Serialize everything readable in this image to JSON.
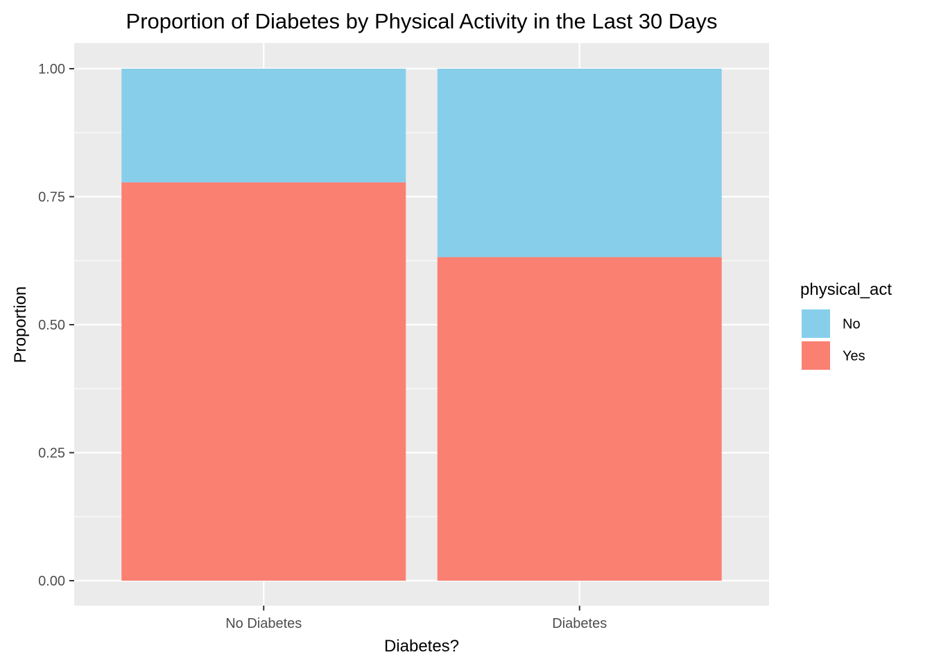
{
  "chart_data": {
    "type": "bar",
    "stacked": true,
    "title": "Proportion of Diabetes by Physical Activity in the Last 30 Days",
    "xlabel": "Diabetes?",
    "ylabel": "Proportion",
    "categories": [
      "No Diabetes",
      "Diabetes"
    ],
    "y_ticks": [
      "0.00",
      "0.25",
      "0.50",
      "0.75",
      "1.00"
    ],
    "ylim": [
      0,
      1
    ],
    "grid": true,
    "legend": {
      "title": "physical_act",
      "placement": "right"
    },
    "series": [
      {
        "name": "Yes",
        "values": [
          0.778,
          0.632
        ],
        "color": "#FA8072"
      },
      {
        "name": "No",
        "values": [
          0.222,
          0.368
        ],
        "color": "#87CEEB"
      }
    ],
    "legend_order": [
      "No",
      "Yes"
    ]
  }
}
